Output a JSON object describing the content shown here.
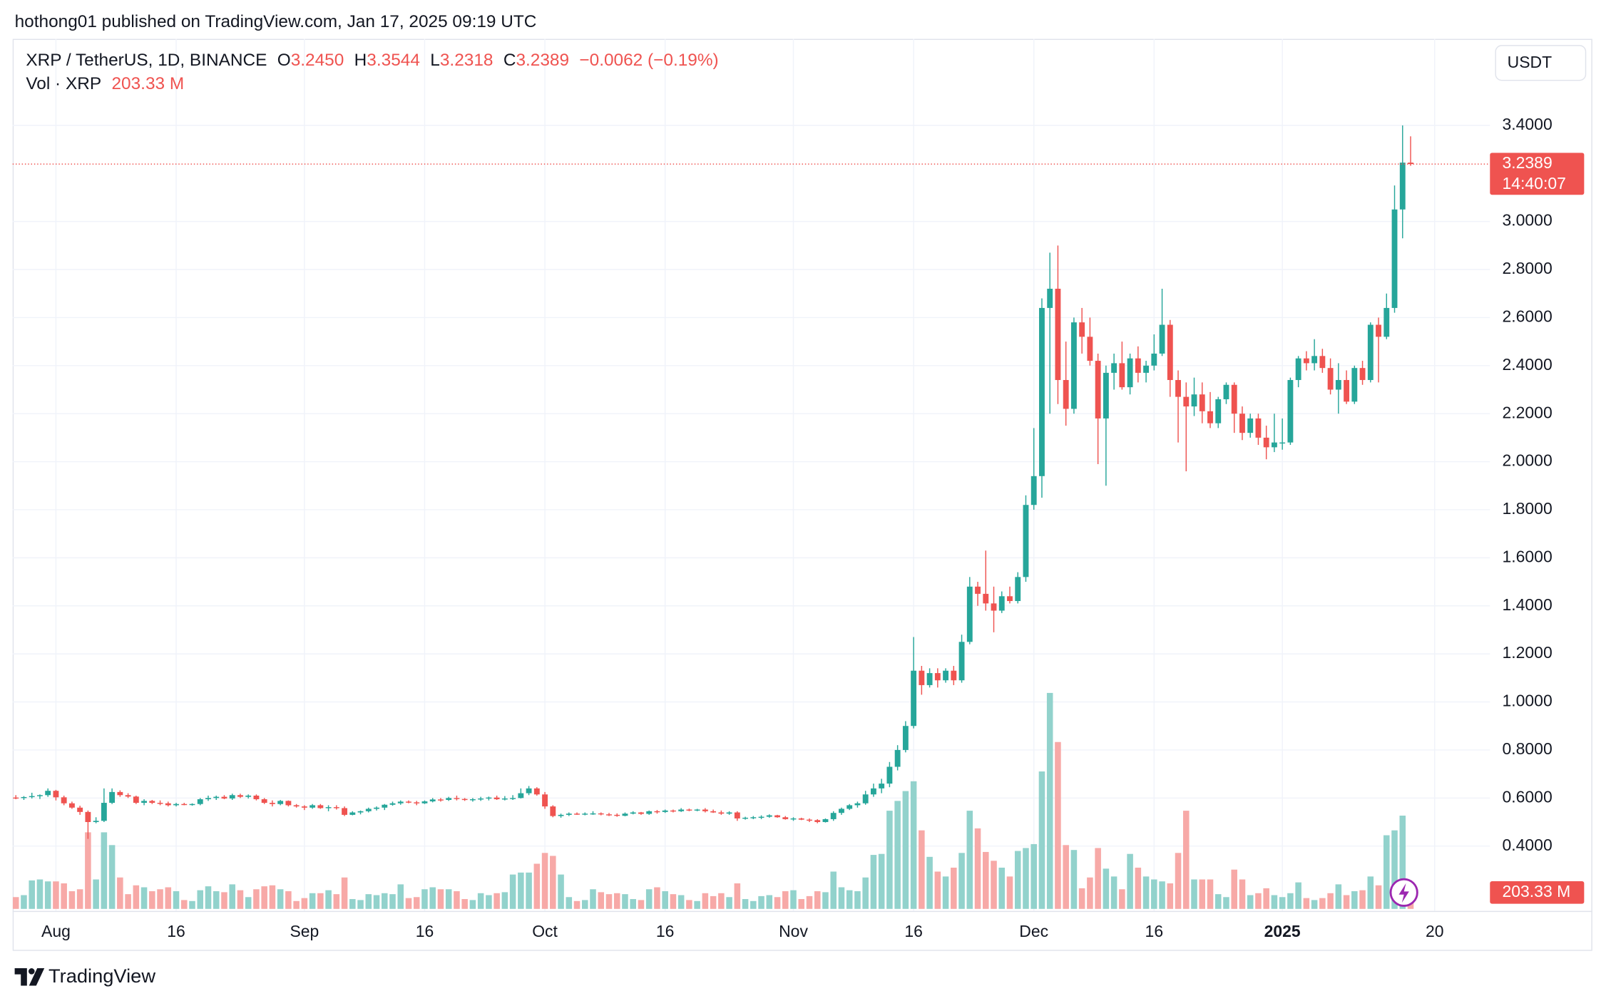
{
  "chart_data": {
    "type": "candlestick",
    "attribution": "hothong01 published on TradingView.com, Jan 17, 2025 09:19 UTC",
    "symbol": "XRP / TetherUS, 1D, BINANCE",
    "ohlc_legend": [
      {
        "key": "O",
        "value": "3.2450"
      },
      {
        "key": "H",
        "value": "3.3544"
      },
      {
        "key": "L",
        "value": "3.2318"
      },
      {
        "key": "C",
        "value": "3.2389"
      }
    ],
    "change": "−0.0062 (−0.19%)",
    "volume_legend": "Vol · XRP",
    "volume_legend_value": "203.33 M",
    "currency": "USDT",
    "last_price_label": "3.2389",
    "countdown": "14:40:07",
    "last_volume_label": "203.33 M",
    "brand": "TradingView",
    "grid": true,
    "up_color": "#26a69a",
    "down_color": "#ef5350",
    "volume_up_color": "#92d2cc",
    "volume_down_color": "#f7a9a7",
    "ylim": [
      0.13,
      3.76
    ],
    "yticks": [
      {
        "value": 0.4,
        "label": "0.4000"
      },
      {
        "value": 0.6,
        "label": "0.6000"
      },
      {
        "value": 0.8,
        "label": "0.8000"
      },
      {
        "value": 1.0,
        "label": "1.0000"
      },
      {
        "value": 1.2,
        "label": "1.2000"
      },
      {
        "value": 1.4,
        "label": "1.4000"
      },
      {
        "value": 1.6,
        "label": "1.6000"
      },
      {
        "value": 1.8,
        "label": "1.8000"
      },
      {
        "value": 2.0,
        "label": "2.0000"
      },
      {
        "value": 2.2,
        "label": "2.2000"
      },
      {
        "value": 2.4,
        "label": "2.4000"
      },
      {
        "value": 2.6,
        "label": "2.6000"
      },
      {
        "value": 2.8,
        "label": "2.8000"
      },
      {
        "value": 3.0,
        "label": "3.0000"
      },
      {
        "value": 3.4,
        "label": "3.4000"
      }
    ],
    "xlim": [
      -0.4,
      183.9
    ],
    "xticks": [
      {
        "value": 5,
        "label": "Aug"
      },
      {
        "value": 20,
        "label": "16"
      },
      {
        "value": 36,
        "label": "Sep"
      },
      {
        "value": 51,
        "label": "16"
      },
      {
        "value": 66,
        "label": "Oct"
      },
      {
        "value": 81,
        "label": "16"
      },
      {
        "value": 97,
        "label": "Nov"
      },
      {
        "value": 112,
        "label": "16"
      },
      {
        "value": 127,
        "label": "Dec"
      },
      {
        "value": 142,
        "label": "16"
      },
      {
        "value": 158,
        "label": "2025"
      },
      {
        "value": 177,
        "label": "20"
      }
    ],
    "open": [
      0.602,
      0.6,
      0.604,
      0.608,
      0.612,
      0.63,
      0.603,
      0.578,
      0.56,
      0.542,
      0.5,
      0.505,
      0.58,
      0.625,
      0.612,
      0.606,
      0.58,
      0.588,
      0.58,
      0.578,
      0.57,
      0.575,
      0.572,
      0.575,
      0.595,
      0.6,
      0.605,
      0.598,
      0.612,
      0.605,
      0.61,
      0.595,
      0.58,
      0.575,
      0.588,
      0.57,
      0.565,
      0.56,
      0.57,
      0.558,
      0.562,
      0.558,
      0.53,
      0.54,
      0.545,
      0.555,
      0.56,
      0.572,
      0.578,
      0.585,
      0.582,
      0.578,
      0.586,
      0.594,
      0.592,
      0.6,
      0.596,
      0.592,
      0.595,
      0.598,
      0.602,
      0.595,
      0.598,
      0.6,
      0.62,
      0.64,
      0.615,
      0.565,
      0.525,
      0.53,
      0.535,
      0.533,
      0.535,
      0.536,
      0.532,
      0.53,
      0.526,
      0.535,
      0.54,
      0.534,
      0.545,
      0.542,
      0.548,
      0.545,
      0.552,
      0.55,
      0.552,
      0.545,
      0.54,
      0.535,
      0.54,
      0.515,
      0.518,
      0.52,
      0.522,
      0.528,
      0.52,
      0.512,
      0.515,
      0.51,
      0.508,
      0.5,
      0.512,
      0.538,
      0.555,
      0.57,
      0.578,
      0.615,
      0.64,
      0.66,
      0.73,
      0.8,
      0.9,
      1.13,
      1.07,
      1.12,
      1.09,
      1.13,
      1.09,
      1.25,
      1.48,
      1.45,
      1.41,
      1.38,
      1.44,
      1.42,
      1.52,
      1.82,
      1.94,
      2.64,
      2.72,
      2.34,
      2.22,
      2.58,
      2.52,
      2.42,
      2.18,
      2.37,
      2.41,
      2.31,
      2.43,
      2.37,
      2.4,
      2.45,
      2.57,
      2.34,
      2.27,
      2.23,
      2.28,
      2.21,
      2.16,
      2.26,
      2.32,
      2.2,
      2.12,
      2.18,
      2.1,
      2.06,
      2.08,
      2.08,
      2.34,
      2.43,
      2.41,
      2.44,
      2.39,
      2.3,
      2.34,
      2.25,
      2.39,
      2.34,
      2.57,
      2.52,
      2.64,
      3.05,
      3.245
    ],
    "high": [
      0.612,
      0.608,
      0.622,
      0.615,
      0.64,
      0.634,
      0.61,
      0.585,
      0.568,
      0.548,
      0.52,
      0.64,
      0.64,
      0.632,
      0.62,
      0.61,
      0.595,
      0.592,
      0.59,
      0.585,
      0.58,
      0.58,
      0.578,
      0.6,
      0.61,
      0.61,
      0.612,
      0.618,
      0.618,
      0.615,
      0.615,
      0.6,
      0.59,
      0.592,
      0.59,
      0.575,
      0.57,
      0.575,
      0.575,
      0.57,
      0.57,
      0.565,
      0.545,
      0.548,
      0.56,
      0.565,
      0.575,
      0.585,
      0.59,
      0.59,
      0.588,
      0.59,
      0.6,
      0.6,
      0.605,
      0.61,
      0.6,
      0.6,
      0.605,
      0.606,
      0.61,
      0.608,
      0.612,
      0.64,
      0.65,
      0.645,
      0.625,
      0.57,
      0.535,
      0.54,
      0.54,
      0.54,
      0.545,
      0.54,
      0.538,
      0.536,
      0.54,
      0.545,
      0.542,
      0.548,
      0.55,
      0.552,
      0.552,
      0.558,
      0.556,
      0.555,
      0.558,
      0.552,
      0.548,
      0.545,
      0.545,
      0.522,
      0.525,
      0.528,
      0.532,
      0.53,
      0.525,
      0.52,
      0.518,
      0.515,
      0.512,
      0.515,
      0.545,
      0.56,
      0.575,
      0.585,
      0.63,
      0.66,
      0.68,
      0.75,
      0.82,
      0.92,
      1.27,
      1.15,
      1.14,
      1.14,
      1.14,
      1.15,
      1.28,
      1.52,
      1.5,
      1.63,
      1.48,
      1.46,
      1.48,
      1.54,
      1.86,
      2.14,
      2.68,
      2.87,
      2.9,
      2.5,
      2.6,
      2.64,
      2.6,
      2.45,
      2.4,
      2.45,
      2.5,
      2.45,
      2.48,
      2.42,
      2.53,
      2.72,
      2.59,
      2.38,
      2.33,
      2.35,
      2.33,
      2.29,
      2.27,
      2.33,
      2.33,
      2.23,
      2.2,
      2.2,
      2.15,
      2.2,
      2.18,
      2.35,
      2.44,
      2.46,
      2.51,
      2.47,
      2.43,
      2.41,
      2.38,
      2.4,
      2.42,
      2.58,
      2.6,
      2.7,
      3.15,
      3.4,
      3.3544
    ],
    "low": [
      0.595,
      0.592,
      0.598,
      0.596,
      0.605,
      0.59,
      0.57,
      0.555,
      0.53,
      0.43,
      0.495,
      0.5,
      0.575,
      0.605,
      0.6,
      0.575,
      0.57,
      0.575,
      0.57,
      0.565,
      0.565,
      0.57,
      0.568,
      0.57,
      0.588,
      0.592,
      0.595,
      0.592,
      0.6,
      0.598,
      0.59,
      0.575,
      0.565,
      0.57,
      0.565,
      0.56,
      0.55,
      0.555,
      0.555,
      0.545,
      0.552,
      0.525,
      0.528,
      0.532,
      0.54,
      0.548,
      0.55,
      0.568,
      0.572,
      0.578,
      0.57,
      0.575,
      0.582,
      0.585,
      0.588,
      0.59,
      0.588,
      0.585,
      0.588,
      0.59,
      0.592,
      0.59,
      0.592,
      0.598,
      0.612,
      0.61,
      0.555,
      0.52,
      0.518,
      0.525,
      0.53,
      0.528,
      0.53,
      0.528,
      0.525,
      0.522,
      0.524,
      0.532,
      0.53,
      0.53,
      0.535,
      0.538,
      0.54,
      0.542,
      0.545,
      0.545,
      0.54,
      0.538,
      0.53,
      0.53,
      0.505,
      0.51,
      0.512,
      0.512,
      0.518,
      0.518,
      0.51,
      0.505,
      0.508,
      0.5,
      0.495,
      0.498,
      0.505,
      0.53,
      0.55,
      0.56,
      0.572,
      0.605,
      0.62,
      0.645,
      0.715,
      0.79,
      0.89,
      1.03,
      1.06,
      1.06,
      1.08,
      1.07,
      1.08,
      1.24,
      1.4,
      1.38,
      1.29,
      1.37,
      1.41,
      1.41,
      1.5,
      1.8,
      1.85,
      2.2,
      2.24,
      2.15,
      2.2,
      2.45,
      2.4,
      1.99,
      1.9,
      2.3,
      2.3,
      2.28,
      2.33,
      2.33,
      2.38,
      2.44,
      2.27,
      2.08,
      1.96,
      2.19,
      2.16,
      2.14,
      2.14,
      2.24,
      2.12,
      2.09,
      2.1,
      2.07,
      2.01,
      2.04,
      2.05,
      2.07,
      2.31,
      2.38,
      2.38,
      2.37,
      2.28,
      2.2,
      2.24,
      2.24,
      2.32,
      2.33,
      2.33,
      2.51,
      2.62,
      2.93,
      3.2318
    ],
    "close": [
      0.6,
      0.604,
      0.608,
      0.612,
      0.63,
      0.603,
      0.578,
      0.56,
      0.542,
      0.5,
      0.505,
      0.58,
      0.625,
      0.612,
      0.606,
      0.58,
      0.588,
      0.58,
      0.578,
      0.57,
      0.575,
      0.572,
      0.575,
      0.595,
      0.6,
      0.605,
      0.598,
      0.612,
      0.605,
      0.61,
      0.595,
      0.58,
      0.575,
      0.588,
      0.57,
      0.565,
      0.56,
      0.57,
      0.558,
      0.562,
      0.558,
      0.53,
      0.54,
      0.545,
      0.555,
      0.56,
      0.572,
      0.578,
      0.585,
      0.582,
      0.578,
      0.586,
      0.594,
      0.592,
      0.6,
      0.596,
      0.592,
      0.595,
      0.598,
      0.602,
      0.595,
      0.598,
      0.6,
      0.62,
      0.64,
      0.615,
      0.565,
      0.525,
      0.53,
      0.535,
      0.533,
      0.535,
      0.536,
      0.532,
      0.53,
      0.526,
      0.535,
      0.54,
      0.534,
      0.545,
      0.542,
      0.548,
      0.545,
      0.552,
      0.55,
      0.552,
      0.545,
      0.54,
      0.535,
      0.54,
      0.515,
      0.518,
      0.52,
      0.522,
      0.528,
      0.52,
      0.512,
      0.515,
      0.51,
      0.508,
      0.5,
      0.512,
      0.538,
      0.555,
      0.57,
      0.578,
      0.615,
      0.64,
      0.66,
      0.73,
      0.8,
      0.9,
      1.13,
      1.07,
      1.12,
      1.09,
      1.13,
      1.09,
      1.25,
      1.48,
      1.45,
      1.41,
      1.38,
      1.44,
      1.42,
      1.52,
      1.82,
      1.94,
      2.64,
      2.72,
      2.34,
      2.22,
      2.58,
      2.52,
      2.42,
      2.18,
      2.37,
      2.41,
      2.31,
      2.43,
      2.37,
      2.4,
      2.45,
      2.57,
      2.34,
      2.27,
      2.23,
      2.28,
      2.21,
      2.16,
      2.26,
      2.32,
      2.2,
      2.12,
      2.18,
      2.1,
      2.06,
      2.08,
      2.08,
      2.34,
      2.43,
      2.41,
      2.44,
      2.39,
      2.3,
      2.34,
      2.25,
      2.39,
      2.34,
      2.57,
      2.52,
      2.64,
      3.05,
      3.245,
      3.2389
    ],
    "volume": [
      120,
      140,
      290,
      300,
      280,
      280,
      260,
      180,
      200,
      780,
      300,
      780,
      650,
      320,
      150,
      240,
      220,
      180,
      200,
      220,
      180,
      90,
      80,
      190,
      230,
      180,
      170,
      250,
      190,
      120,
      200,
      230,
      240,
      200,
      180,
      80,
      110,
      160,
      160,
      190,
      150,
      320,
      100,
      90,
      150,
      140,
      160,
      150,
      250,
      110,
      120,
      200,
      220,
      200,
      200,
      180,
      100,
      90,
      160,
      140,
      160,
      170,
      350,
      370,
      370,
      460,
      570,
      540,
      350,
      120,
      80,
      90,
      200,
      170,
      150,
      160,
      150,
      100,
      90,
      200,
      220,
      180,
      150,
      140,
      90,
      80,
      160,
      130,
      160,
      120,
      260,
      100,
      80,
      130,
      140,
      120,
      180,
      190,
      100,
      130,
      180,
      170,
      380,
      220,
      190,
      180,
      320,
      550,
      560,
      1000,
      1100,
      1200,
      1300,
      800,
      530,
      380,
      330,
      420,
      570,
      1000,
      820,
      580,
      490,
      420,
      330,
      590,
      620,
      660,
      1400,
      2200,
      1700,
      650,
      600,
      210,
      320,
      620,
      410,
      330,
      200,
      560,
      420,
      330,
      300,
      280,
      260,
      570,
      1000,
      300,
      300,
      300,
      150,
      120,
      400,
      300,
      140,
      160,
      210,
      140,
      120,
      160,
      270,
      110,
      90,
      110,
      160,
      250,
      140,
      180,
      190,
      330,
      240,
      750,
      800,
      950,
      203.33
    ]
  }
}
